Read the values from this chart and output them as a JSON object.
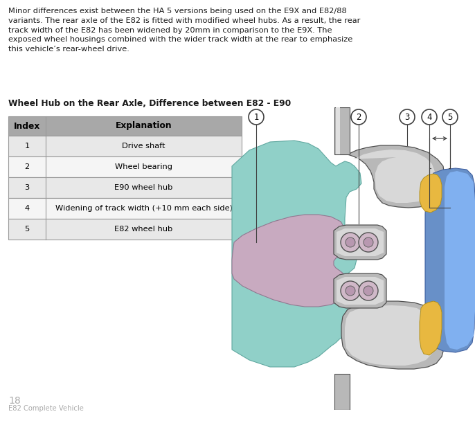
{
  "body_text_lines": [
    "Minor differences exist between the HA 5 versions being used on the E9X and E82/88",
    "variants. The rear axle of the E82 is fitted with modified wheel hubs. As a result, the rear",
    "track width of the E82 has been widened by 20mm in comparison to the E9X. The",
    "exposed wheel housings combined with the wider track width at the rear to emphasize",
    "this vehicle’s rear-wheel drive."
  ],
  "subtitle": "Wheel Hub on the Rear Axle, Difference between E82 - E90",
  "table_headers": [
    "Index",
    "Explanation"
  ],
  "table_rows": [
    [
      "1",
      "Drive shaft"
    ],
    [
      "2",
      "Wheel bearing"
    ],
    [
      "3",
      "E90 wheel hub"
    ],
    [
      "4",
      "Widening of track width (+10 mm each side)"
    ],
    [
      "5",
      "E82 wheel hub"
    ]
  ],
  "footer_number": "18",
  "footer_text": "E82 Complete Vehicle",
  "bg_color": "#ffffff",
  "text_color": "#1a1a1a",
  "gray_text": "#aaaaaa",
  "table_header_bg": "#a8a8a8",
  "table_alt1": "#f5f5f5",
  "table_alt2": "#e8e8e8",
  "table_border": "#999999",
  "teal": "#90d0c8",
  "purple": "#c8aac0",
  "gray_dark": "#707070",
  "gray_mid": "#b8b8b8",
  "gray_light": "#d8d8d8",
  "gray_outer": "#c0c0c0",
  "gold": "#e8b840",
  "blue_main": "#6890c8",
  "blue_light": "#90b8e0",
  "blue_bright": "#80b0f0",
  "outline": "#505050",
  "callout_line": "#404040"
}
